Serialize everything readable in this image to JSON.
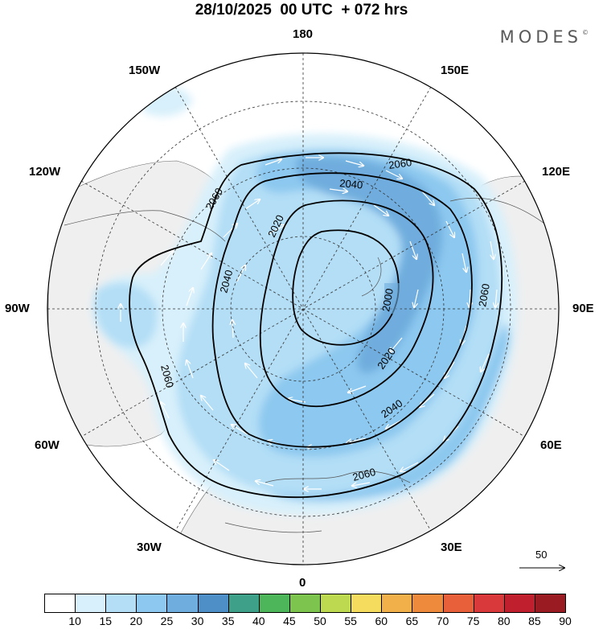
{
  "title": "28/10/2025  00 UTC  + 072 hrs",
  "logo": "MODES",
  "logo_mark": "©",
  "longitude_labels": {
    "n180": "180",
    "w150": "150W",
    "e150": "150E",
    "w120": "120W",
    "e120": "120E",
    "w90": "90W",
    "e90": "90E",
    "w60": "60W",
    "e60": "60E",
    "w30": "30W",
    "e30": "30E",
    "s0": "0"
  },
  "contours": [
    {
      "label": "2000",
      "value": 2000
    },
    {
      "label": "2020",
      "value": 2020
    },
    {
      "label": "2040",
      "value": 2040
    },
    {
      "label": "2060",
      "value": 2060
    }
  ],
  "reference_vector": {
    "label": "50",
    "value": 50
  },
  "colorbar": {
    "ticks": [
      "10",
      "15",
      "20",
      "25",
      "30",
      "35",
      "40",
      "45",
      "50",
      "55",
      "60",
      "65",
      "70",
      "75",
      "80",
      "85",
      "90"
    ],
    "colors": [
      "#ffffff",
      "#d8f0fb",
      "#b3def6",
      "#8cc8ef",
      "#6fadde",
      "#4f8fc8",
      "#3fa08a",
      "#4db55a",
      "#7cc44e",
      "#bcd94f",
      "#f5dc5e",
      "#f2b04a",
      "#ee8a3b",
      "#e8603a",
      "#d9393a",
      "#c01f2e",
      "#9a1c22"
    ]
  },
  "colors": {
    "land": "#efefef",
    "coast": "#555555",
    "contour": "#000000",
    "grid": "#333333"
  }
}
